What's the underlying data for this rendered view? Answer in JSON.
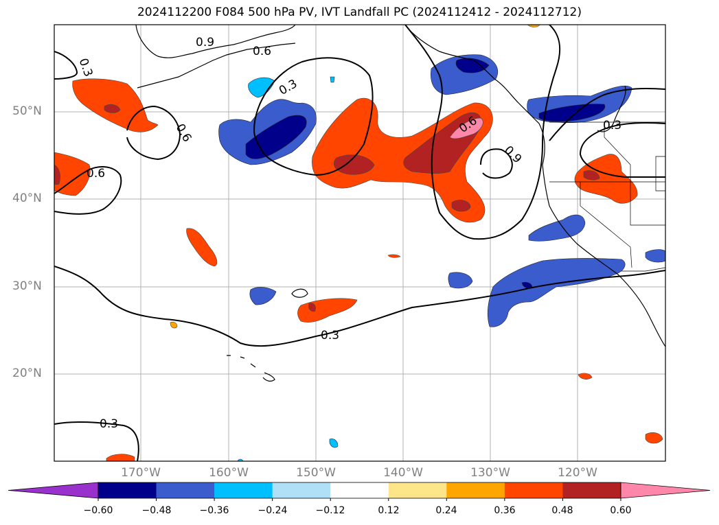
{
  "title": "2024112200 F084 500 hPa PV, IVT Landfall PC (2024112412 - 2024112712)",
  "lat_labels": [
    "50°N",
    "40°N",
    "30°N",
    "20°N"
  ],
  "lon_labels": [
    "170°W",
    "160°W",
    "150°W",
    "140°W",
    "130°W",
    "120°W"
  ],
  "contour_labels": [
    "0.9",
    "0.6",
    "0.3",
    "0.3",
    "0.6",
    "0.6",
    "0.9",
    "0.6",
    "0.3",
    "0.3",
    "0.3"
  ],
  "colorbar": {
    "ticks": [
      "−0.60",
      "−0.48",
      "−0.36",
      "−0.24",
      "−0.12",
      "0.12",
      "0.24",
      "0.36",
      "0.48",
      "0.60"
    ],
    "colors": [
      "#9932cc",
      "#00008b",
      "#3a5ccc",
      "#00bfff",
      "#b0e0f8",
      "#ffffff",
      "#fde68a",
      "#ffa500",
      "#ff4500",
      "#b22222",
      "#ff88aa"
    ]
  }
}
